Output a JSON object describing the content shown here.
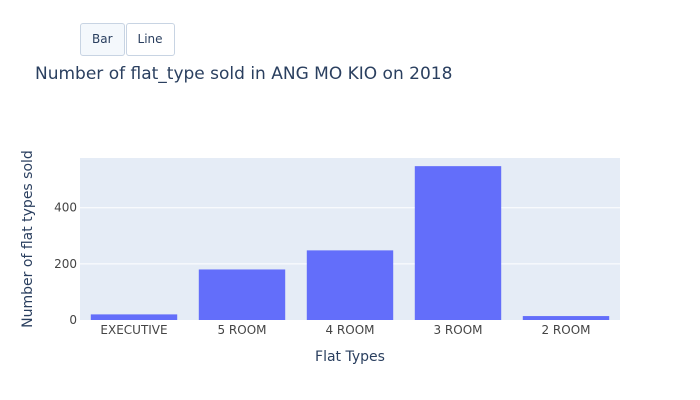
{
  "controls": {
    "buttons": [
      {
        "label": "Bar",
        "active": true
      },
      {
        "label": "Line",
        "active": false
      }
    ]
  },
  "chart_data": {
    "type": "bar",
    "title": "Number of flat_type sold in ANG MO KIO on 2018",
    "xlabel": "Flat Types",
    "ylabel": "Number of flat types sold",
    "categories": [
      "EXECUTIVE",
      "5 ROOM",
      "4 ROOM",
      "3 ROOM",
      "2 ROOM"
    ],
    "values": [
      20,
      180,
      248,
      548,
      14
    ],
    "ylim": [
      0,
      577
    ],
    "yticks": [
      0,
      200,
      400
    ],
    "grid": true,
    "colors": {
      "bar": "#636efa",
      "plot_bg": "#e5ecf6",
      "grid": "#ffffff",
      "text": "#2a3f5f",
      "tick_text": "#444444"
    }
  }
}
